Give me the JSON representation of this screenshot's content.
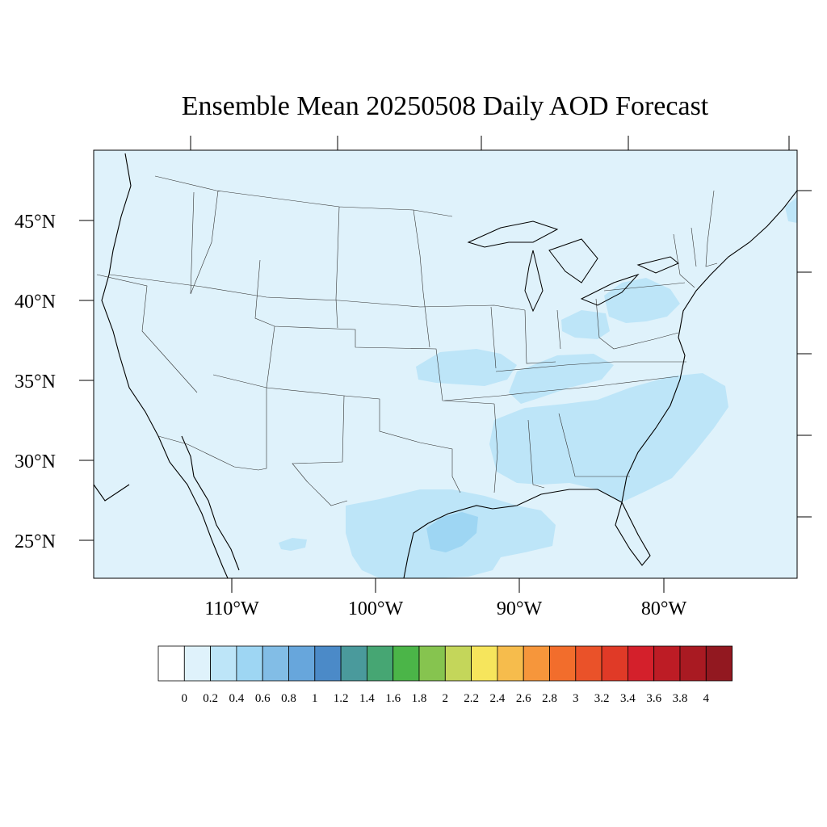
{
  "title": "Ensemble Mean 20250508 Daily AOD Forecast",
  "map": {
    "projection": "lambert-conformal",
    "background_level_color": "#dff2fb",
    "lat_labels": [
      "25°N",
      "30°N",
      "35°N",
      "40°N",
      "45°N"
    ],
    "lon_labels": [
      "110°W",
      "100°W",
      "90°W",
      "80°W"
    ],
    "aod_features": [
      {
        "region": "Gulf of Mexico coast (Texas–Louisiana)",
        "level": "0.2–0.4"
      },
      {
        "region": "Offshore Texas/Louisiana",
        "level": "0.4–0.6"
      },
      {
        "region": "Southeast US and Atlantic coast",
        "level": "0.2–0.4"
      },
      {
        "region": "Ohio Valley / Indiana",
        "level": "0.2–0.4"
      },
      {
        "region": "Pennsylvania / New York",
        "level": "0.2–0.4"
      },
      {
        "region": "Arkansas / Missouri",
        "level": "0.2–0.4"
      },
      {
        "region": "Rest of domain",
        "level": "0–0.2"
      }
    ]
  },
  "colorbar": {
    "colors": [
      "#ffffff",
      "#dff2fb",
      "#bde5f8",
      "#9ed6f3",
      "#82bde6",
      "#67a6dc",
      "#4b8ac8",
      "#4a9a9c",
      "#46a673",
      "#4bb548",
      "#86c44f",
      "#c4d65a",
      "#f6e55c",
      "#f6bc4c",
      "#f6963b",
      "#f26d2c",
      "#ea5229",
      "#e03a27",
      "#d4202b",
      "#bd1c25",
      "#a91a22",
      "#921820"
    ],
    "labels": [
      "0",
      "0.2",
      "0.4",
      "0.6",
      "0.8",
      "1",
      "1.2",
      "1.4",
      "1.6",
      "1.8",
      "2",
      "2.2",
      "2.4",
      "2.6",
      "2.8",
      "3",
      "3.2",
      "3.4",
      "3.6",
      "3.8",
      "4"
    ]
  }
}
